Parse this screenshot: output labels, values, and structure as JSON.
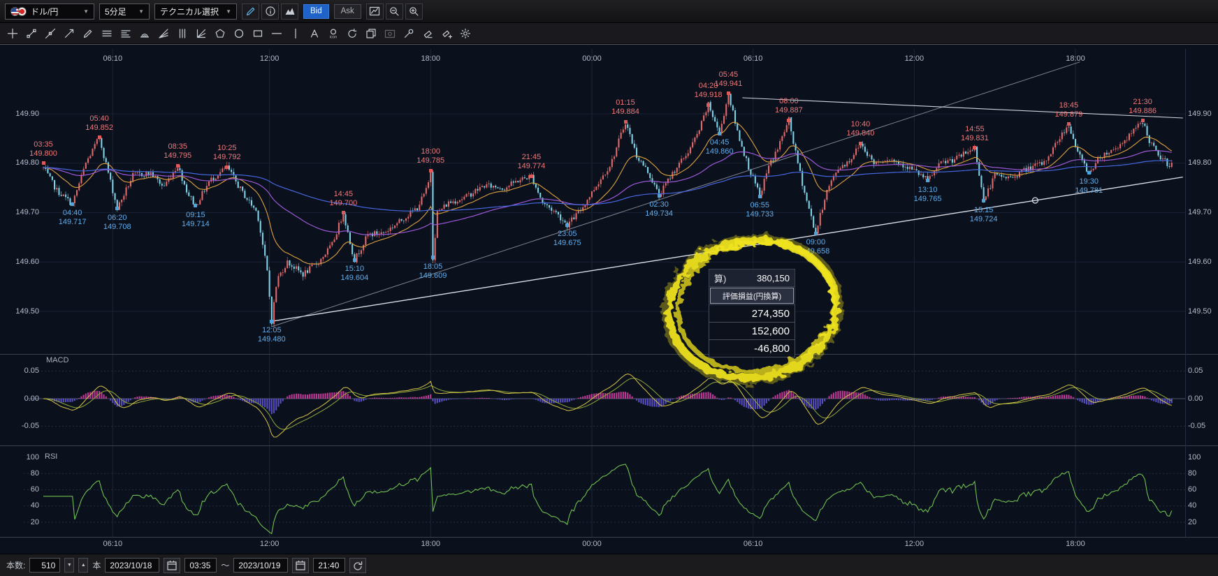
{
  "toolbar": {
    "pair": "ドル/円",
    "timeframe": "5分足",
    "technical": "テクニカル選択",
    "caret": "▼",
    "bid": "Bid",
    "ask": "Ask",
    "left_icons": [
      "pencil",
      "info",
      "mountain-chart"
    ],
    "right_icons": [
      "chart-window",
      "zoom-out",
      "zoom-in"
    ]
  },
  "drawing_tools": [
    "crosshair",
    "trendline",
    "extended-line",
    "ray-line",
    "pencil",
    "horizontal-lines",
    "price-lines",
    "fibonacci-arc",
    "fibonacci-fan",
    "vertical-lines",
    "gann-angle",
    "pentagon",
    "circle",
    "rectangle",
    "horizontal-line",
    "vertical-line",
    "text",
    "icon-stamp",
    "rotate",
    "copy",
    "screenshot",
    "wrench",
    "eraser",
    "eraser-plus",
    "settings"
  ],
  "pnl_panel": {
    "total_prefix": "算)",
    "total": "380,150",
    "header": "評価損益(円換算)",
    "values": [
      "274,350",
      "152,600",
      "-46,800"
    ]
  },
  "macd": {
    "label": "MACD",
    "ticks": [
      {
        "v": 0.05,
        "label": "0.05"
      },
      {
        "v": 0,
        "label": "0.00"
      },
      {
        "v": -0.05,
        "label": "-0.05"
      }
    ]
  },
  "rsi": {
    "label": "RSI",
    "ticks": [
      {
        "v": 100,
        "label": "100"
      },
      {
        "v": 80,
        "label": "80"
      },
      {
        "v": 60,
        "label": "60"
      },
      {
        "v": 40,
        "label": "40"
      },
      {
        "v": 20,
        "label": "20"
      }
    ]
  },
  "bottom_bar": {
    "count_label": "本数:",
    "count": "510",
    "unit": "本",
    "down_arrow": "▼",
    "up_arrow": "▲",
    "date_from": "2023/10/18",
    "time_from": "03:35",
    "range_separator": "～",
    "date_to": "2023/10/19",
    "time_to": "21:40",
    "calendar_icon": "calendar-icon",
    "undo_icon": "undo-icon"
  },
  "accent_colors": {
    "candle_up": "#e06a6a",
    "candle_down": "#7ed2e6",
    "ma_fast": "#dfa23f",
    "ma_mid": "#9b59d6",
    "ma_slow": "#4668e0",
    "macd_line": "#d8c645",
    "macd_signal": "#93a93a",
    "macd_hist_pos": "#cf3da2",
    "macd_hist_neg": "#5f54d0",
    "rsi_line": "#6fc050",
    "high_label": "#f07878",
    "low_label": "#62aeea",
    "highlight": "#f2e41e",
    "bid_button": "#1f62c8"
  },
  "chart": {
    "price_ticks": [
      {
        "v": 149.9,
        "label": "149.90"
      },
      {
        "v": 149.8,
        "label": "149.80"
      },
      {
        "v": 149.7,
        "label": "149.70"
      },
      {
        "v": 149.6,
        "label": "149.60"
      },
      {
        "v": 149.5,
        "label": "149.50"
      }
    ],
    "time_ticks": [
      {
        "t": 155,
        "label": "06:10"
      },
      {
        "t": 505,
        "label": "12:00"
      },
      {
        "t": 865,
        "label": "18:00"
      },
      {
        "t": 1225,
        "label": "00:00"
      },
      {
        "t": 1585,
        "label": "06:10"
      },
      {
        "t": 1945,
        "label": "12:00"
      },
      {
        "t": 2305,
        "label": "18:00"
      }
    ],
    "annotations": [
      {
        "time": "03:35",
        "price": "149.800",
        "t": 0,
        "value": 149.8,
        "kind": "high"
      },
      {
        "time": "05:40",
        "price": "149.852",
        "t": 125,
        "value": 149.852,
        "kind": "high"
      },
      {
        "time": "08:35",
        "price": "149.795",
        "t": 300,
        "value": 149.795,
        "kind": "high"
      },
      {
        "time": "10:25",
        "price": "149.792",
        "t": 410,
        "value": 149.792,
        "kind": "high"
      },
      {
        "time": "14:45",
        "price": "149.700",
        "t": 670,
        "value": 149.7,
        "kind": "high"
      },
      {
        "time": "18:00",
        "price": "149.785",
        "t": 865,
        "value": 149.785,
        "kind": "high"
      },
      {
        "time": "21:45",
        "price": "149.774",
        "t": 1090,
        "value": 149.774,
        "k_": "",
        "kind": "high"
      },
      {
        "time": "01:15",
        "price": "149.884",
        "t": 1300,
        "value": 149.884,
        "kind": "high"
      },
      {
        "time": "04:20",
        "price": "149.918",
        "t": 1485,
        "value": 149.918,
        "kind": "high"
      },
      {
        "time": "05:45",
        "price": "149.941",
        "t": 1530,
        "value": 149.941,
        "kind": "high"
      },
      {
        "time": "08:00",
        "price": "149.887",
        "t": 1665,
        "value": 149.887,
        "kind": "high"
      },
      {
        "time": "10:40",
        "price": "149.840",
        "t": 1825,
        "value": 149.84,
        "kind": "high"
      },
      {
        "time": "14:55",
        "price": "149.831",
        "t": 2080,
        "value": 149.831,
        "kind": "high"
      },
      {
        "time": "18:45",
        "price": "149.879",
        "t": 2290,
        "value": 149.879,
        "kind": "high"
      },
      {
        "time": "21:30",
        "price": "149.886",
        "t": 2455,
        "value": 149.886,
        "kind": "high"
      },
      {
        "time": "04:40",
        "price": "149.717",
        "t": 65,
        "value": 149.717,
        "kind": "low"
      },
      {
        "time": "06:20",
        "price": "149.708",
        "t": 165,
        "value": 149.708,
        "kind": "low"
      },
      {
        "time": "09:15",
        "price": "149.714",
        "t": 340,
        "value": 149.714,
        "kind": "low"
      },
      {
        "time": "12:05",
        "price": "149.480",
        "t": 510,
        "value": 149.48,
        "kind": "low"
      },
      {
        "time": "15:10",
        "price": "149.604",
        "t": 695,
        "value": 149.604,
        "kind": "low"
      },
      {
        "time": "18:05",
        "price": "149.609",
        "t": 870,
        "value": 149.609,
        "kind": "low"
      },
      {
        "time": "23:05",
        "price": "149.675",
        "t": 1170,
        "value": 149.675,
        "kind": "low"
      },
      {
        "time": "02:30",
        "price": "149.734",
        "t": 1375,
        "value": 149.734,
        "kind": "low"
      },
      {
        "time": "04:45",
        "price": "149.860",
        "t": 1510,
        "value": 149.86,
        "kind": "low"
      },
      {
        "time": "06:55",
        "price": "149.733",
        "t": 1600,
        "value": 149.733,
        "kind": "low"
      },
      {
        "time": "09:00",
        "price": "149.658",
        "t": 1725,
        "value": 149.658,
        "kind": "low"
      },
      {
        "time": "13:10",
        "price": "149.765",
        "t": 1975,
        "value": 149.765,
        "kind": "low"
      },
      {
        "time": "15:15",
        "price": "149.724",
        "t": 2100,
        "value": 149.724,
        "kind": "low"
      },
      {
        "time": "19:30",
        "price": "149.781",
        "t": 2335,
        "value": 149.781,
        "kind": "low"
      }
    ],
    "trendlines": [
      {
        "name": "support-trendline",
        "t1": 510,
        "p1": 149.48,
        "t2": 2545,
        "p2": 149.772,
        "color": "#e8ebf2",
        "width": 1.3,
        "opacity": 0.95
      },
      {
        "name": "secondary-trendline",
        "t1": 510,
        "p1": 149.469,
        "t2": 2315,
        "p2": 150.005,
        "color": "#aeb4c0",
        "width": 1,
        "opacity": 0.7
      },
      {
        "name": "resistance-trendline",
        "t1": 1561,
        "p1": 149.9325,
        "t2": 2545,
        "p2": 149.8915,
        "color": "#e8ebf2",
        "width": 1.1,
        "opacity": 0.9
      }
    ],
    "trendline_handle": {
      "t": 2215,
      "p": 149.7247
    }
  },
  "chart_data": {
    "type": "candlestick",
    "instrument": "USD/JPY",
    "timeframe": "5分足",
    "bar_count": 510,
    "x_range": [
      "2023/10/18 03:35",
      "2023/10/19 21:40"
    ],
    "ylim": [
      149.45,
      149.96
    ],
    "indicators": [
      "MACD",
      "RSI"
    ],
    "macd_ylim": [
      -0.05,
      0.05
    ],
    "rsi_ylim": [
      20,
      100
    ],
    "price_anchors": [
      [
        0,
        149.79
      ],
      [
        30,
        149.745
      ],
      [
        65,
        149.717
      ],
      [
        95,
        149.8
      ],
      [
        125,
        149.852
      ],
      [
        148,
        149.77
      ],
      [
        165,
        149.708
      ],
      [
        200,
        149.775
      ],
      [
        240,
        149.78
      ],
      [
        268,
        149.752
      ],
      [
        300,
        149.795
      ],
      [
        322,
        149.74
      ],
      [
        340,
        149.714
      ],
      [
        372,
        149.765
      ],
      [
        410,
        149.792
      ],
      [
        445,
        149.74
      ],
      [
        478,
        149.7
      ],
      [
        500,
        149.58
      ],
      [
        510,
        149.48
      ],
      [
        522,
        149.565
      ],
      [
        545,
        149.6
      ],
      [
        580,
        149.575
      ],
      [
        615,
        149.6
      ],
      [
        645,
        149.635
      ],
      [
        670,
        149.7
      ],
      [
        682,
        149.65
      ],
      [
        695,
        149.604
      ],
      [
        725,
        149.655
      ],
      [
        762,
        149.66
      ],
      [
        800,
        149.685
      ],
      [
        835,
        149.71
      ],
      [
        858,
        149.75
      ],
      [
        865,
        149.785
      ],
      [
        870,
        149.609
      ],
      [
        880,
        149.7
      ],
      [
        905,
        149.72
      ],
      [
        940,
        149.73
      ],
      [
        985,
        149.755
      ],
      [
        1030,
        149.75
      ],
      [
        1060,
        149.765
      ],
      [
        1090,
        149.774
      ],
      [
        1115,
        149.72
      ],
      [
        1145,
        149.7
      ],
      [
        1170,
        149.675
      ],
      [
        1200,
        149.705
      ],
      [
        1235,
        149.755
      ],
      [
        1268,
        149.8
      ],
      [
        1300,
        149.884
      ],
      [
        1325,
        149.815
      ],
      [
        1352,
        149.78
      ],
      [
        1375,
        149.734
      ],
      [
        1405,
        149.78
      ],
      [
        1438,
        149.82
      ],
      [
        1462,
        149.86
      ],
      [
        1485,
        149.918
      ],
      [
        1500,
        149.885
      ],
      [
        1510,
        149.86
      ],
      [
        1530,
        149.941
      ],
      [
        1548,
        149.87
      ],
      [
        1572,
        149.8
      ],
      [
        1600,
        149.733
      ],
      [
        1618,
        149.79
      ],
      [
        1640,
        149.83
      ],
      [
        1665,
        149.887
      ],
      [
        1680,
        149.82
      ],
      [
        1700,
        149.74
      ],
      [
        1725,
        149.658
      ],
      [
        1748,
        149.74
      ],
      [
        1775,
        149.79
      ],
      [
        1800,
        149.805
      ],
      [
        1825,
        149.84
      ],
      [
        1855,
        149.8
      ],
      [
        1885,
        149.81
      ],
      [
        1915,
        149.8
      ],
      [
        1945,
        149.785
      ],
      [
        1975,
        149.765
      ],
      [
        2005,
        149.8
      ],
      [
        2040,
        149.81
      ],
      [
        2080,
        149.831
      ],
      [
        2092,
        149.77
      ],
      [
        2100,
        149.724
      ],
      [
        2125,
        149.775
      ],
      [
        2160,
        149.77
      ],
      [
        2200,
        149.79
      ],
      [
        2235,
        149.8
      ],
      [
        2265,
        149.845
      ],
      [
        2290,
        149.879
      ],
      [
        2310,
        149.82
      ],
      [
        2335,
        149.781
      ],
      [
        2362,
        149.815
      ],
      [
        2395,
        149.83
      ],
      [
        2425,
        149.855
      ],
      [
        2455,
        149.885
      ],
      [
        2470,
        149.845
      ],
      [
        2490,
        149.815
      ],
      [
        2510,
        149.8
      ],
      [
        2525,
        149.795
      ]
    ]
  }
}
